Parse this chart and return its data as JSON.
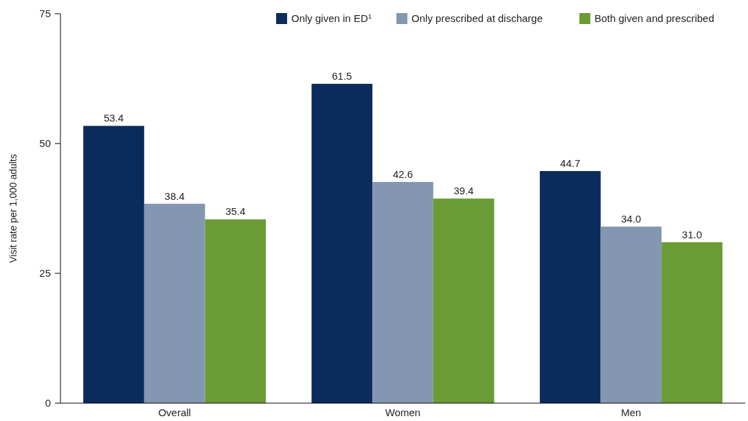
{
  "chart_data": {
    "type": "bar",
    "ylabel": "Visit rate per 1,000 adults",
    "categories": [
      "Overall",
      "Women",
      "Men"
    ],
    "series": [
      {
        "name": "Only given in ED$^{1}$",
        "color": "#0b2b5c",
        "values": [
          53.4,
          61.5,
          44.7
        ]
      },
      {
        "name": "Only prescribed at discharge",
        "color": "#8497b0",
        "values": [
          38.4,
          42.6,
          34.0
        ]
      },
      {
        "name": "Both given and prescribed",
        "color": "#6b9b34",
        "values": [
          35.4,
          39.4,
          31.0
        ]
      }
    ],
    "value_labels": [
      [
        "53.4",
        "61.5",
        "44.7"
      ],
      [
        "38.4",
        "42.6",
        "34.0"
      ],
      [
        "35.4",
        "39.4",
        "31.0"
      ]
    ],
    "ylim": [
      0,
      75
    ],
    "yticks": [
      0,
      25,
      50,
      75
    ],
    "grid": false,
    "legend": "top right"
  }
}
